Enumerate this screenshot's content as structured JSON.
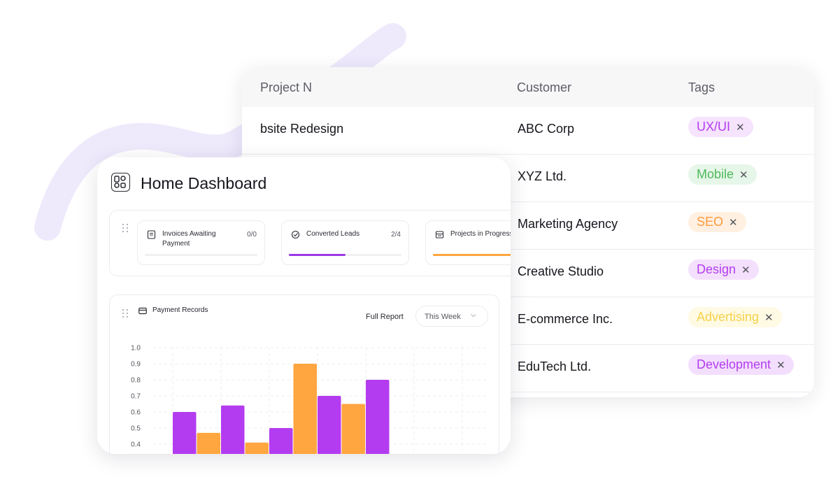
{
  "colors": {
    "purple": "#b43cf0",
    "orange": "#ffa640",
    "blob": "#efe9fc"
  },
  "table": {
    "headers": [
      "Project N",
      "Customer",
      "Tags"
    ],
    "rows": [
      {
        "project": "bsite Redesign",
        "customer": "ABC Corp",
        "tag": "UX/UI",
        "tag_color": "#b43cf0",
        "tag_bg": "#f6e3fd"
      },
      {
        "project": "",
        "customer": "XYZ Ltd.",
        "tag": "Mobile",
        "tag_color": "#4eb85c",
        "tag_bg": "#e6f6e8"
      },
      {
        "project": "",
        "customer": "Marketing Agency",
        "tag": "SEO",
        "tag_color": "#ff9a3c",
        "tag_bg": "#fff0e1"
      },
      {
        "project": "",
        "customer": "Creative Studio",
        "tag": "Design",
        "tag_color": "#b43cf0",
        "tag_bg": "#f4e0fc"
      },
      {
        "project": "",
        "customer": "E-commerce Inc.",
        "tag": "Advertising",
        "tag_color": "#f5d24a",
        "tag_bg": "#fffae3"
      },
      {
        "project": "",
        "customer": "EduTech Ltd.",
        "tag": "Development",
        "tag_color": "#b43cf0",
        "tag_bg": "#f3dffd"
      }
    ],
    "remove_glyph": "✕"
  },
  "dashboard": {
    "title": "Home Dashboard",
    "kpis": [
      {
        "label_line1": "Invoices Awaiting",
        "label_line2": "Payment",
        "count": "0/0",
        "progress": 0.0,
        "icon": "invoice-icon",
        "fill": "#ffa640"
      },
      {
        "label_line1": "Converted Leads",
        "label_line2": "",
        "count": "2/4",
        "progress": 0.5,
        "icon": "leads-icon",
        "fill": "#9b37e8"
      },
      {
        "label_line1": "Projects in Progress",
        "label_line2": "",
        "count": "",
        "progress": 1.0,
        "icon": "projects-icon",
        "fill": "#ffa640"
      }
    ],
    "payment": {
      "title": "Payment Records",
      "full_report": "Full Report",
      "period": "This Week",
      "chevron": "⌵"
    }
  },
  "chart_data": {
    "type": "bar",
    "title": "Payment Records",
    "y_ticks": [
      "1.0",
      "0.9",
      "0.8",
      "0.7",
      "0.6",
      "0.5",
      "0.4"
    ],
    "ylim": [
      0.4,
      1.0
    ],
    "values": [
      0.6,
      0.47,
      0.64,
      0.41,
      0.5,
      0.9,
      0.7,
      0.65,
      0.8
    ],
    "colors": [
      "#b43cf0",
      "#ffa640",
      "#b43cf0",
      "#ffa640",
      "#b43cf0",
      "#ffa640",
      "#b43cf0",
      "#ffa640",
      "#b43cf0"
    ],
    "grid": true
  }
}
